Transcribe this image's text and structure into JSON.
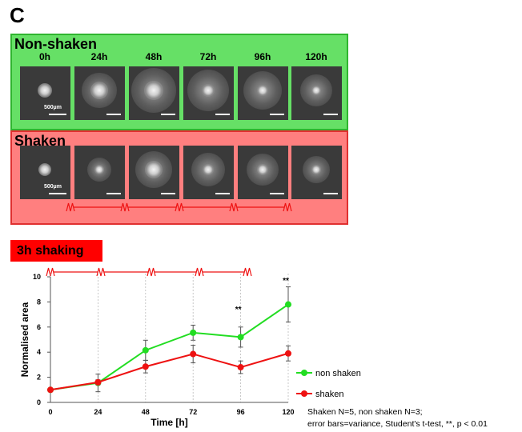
{
  "panel_letter": "C",
  "nonshaken": {
    "title": "Non-shaken",
    "timepoints": [
      "0h",
      "24h",
      "48h",
      "72h",
      "96h",
      "120h"
    ],
    "scale_label": "500µm"
  },
  "shaken": {
    "title": "Shaken",
    "scale_label": "500µm"
  },
  "badge_label": "3h shaking",
  "colors": {
    "non_shaken": "#22dd22",
    "shaken": "#ee1111",
    "nonshaken_box": "#66e066",
    "shaken_box": "#ff7f7f"
  },
  "chart_data": {
    "type": "line",
    "xlabel": "Time [h]",
    "ylabel": "Normalised area",
    "x": [
      0,
      24,
      48,
      72,
      96,
      120
    ],
    "xlim": [
      0,
      120
    ],
    "ylim": [
      0,
      10
    ],
    "yticks": [
      0,
      2,
      4,
      6,
      8,
      10
    ],
    "series": [
      {
        "name": "non shaken",
        "color": "#22dd22",
        "values": [
          1.0,
          1.55,
          4.15,
          5.55,
          5.2,
          7.8
        ],
        "errors": [
          0,
          0.7,
          0.8,
          0.6,
          0.8,
          1.4
        ]
      },
      {
        "name": "shaken",
        "color": "#ee1111",
        "values": [
          1.0,
          1.6,
          2.85,
          3.85,
          2.8,
          3.9
        ],
        "errors": [
          0,
          0.2,
          0.5,
          0.7,
          0.5,
          0.6
        ]
      }
    ],
    "annotations": [
      {
        "x": 96,
        "y": 7.2,
        "text": "**"
      },
      {
        "x": 120,
        "y": 9.5,
        "text": "**"
      }
    ],
    "legend_position": "right"
  },
  "footnote": {
    "line1": "Shaken N=5, non shaken N=3;",
    "line2": "error bars=variance, Student's t-test, **, p < 0.01"
  }
}
